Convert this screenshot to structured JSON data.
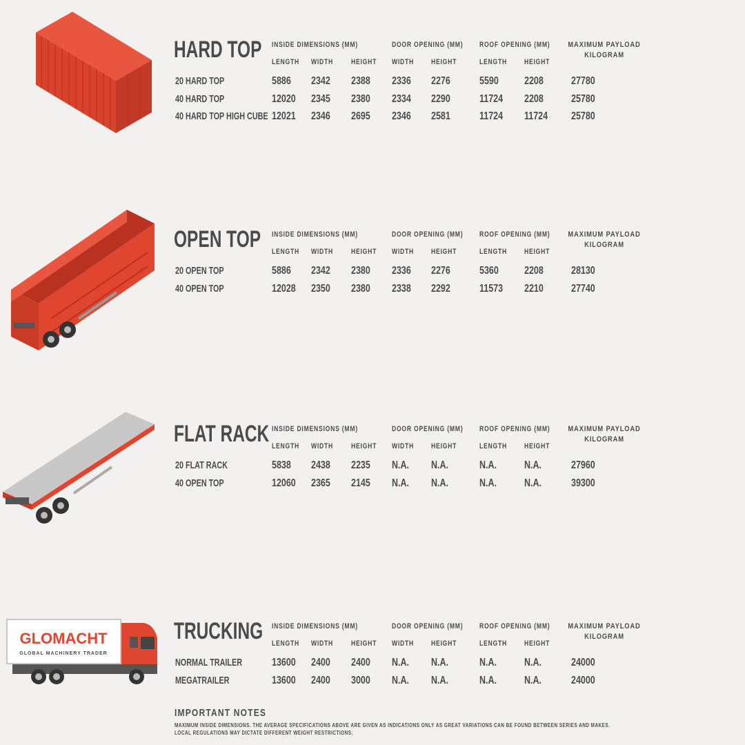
{
  "colors": {
    "text": "#4a4b4d",
    "background": "#f2f1ef",
    "container_red": "#e0452f",
    "flatrack_gray": "#c8c8c8"
  },
  "headers": {
    "inside": "INSIDE DIMENSIONS (MM)",
    "door": "DOOR OPENING (MM)",
    "roof": "ROOF OPENING (MM)",
    "payload_line1": "MAXIMUM PAYLOAD",
    "payload_line2": "KILOGRAM",
    "sub": [
      "LENGTH",
      "WIDTH",
      "HEIGHT",
      "WIDTH",
      "HEIGHT",
      "LENGTH",
      "HEIGHT"
    ]
  },
  "sections": [
    {
      "title": "HARD TOP",
      "illustration": "shipping-container",
      "rows": [
        {
          "name": "20 HARD TOP",
          "values": [
            "5886",
            "2342",
            "2388",
            "2336",
            "2276",
            "5590",
            "2208",
            "27780"
          ]
        },
        {
          "name": "40 HARD TOP",
          "values": [
            "12020",
            "2345",
            "2380",
            "2334",
            "2290",
            "11724",
            "2208",
            "25780"
          ]
        },
        {
          "name": "40 HARD TOP HIGH CUBE",
          "values": [
            "12021",
            "2346",
            "2695",
            "2346",
            "2581",
            "11724",
            "11724",
            "25780"
          ]
        }
      ]
    },
    {
      "title": "OPEN TOP",
      "illustration": "open-top-trailer",
      "rows": [
        {
          "name": "20 OPEN TOP",
          "values": [
            "5886",
            "2342",
            "2380",
            "2336",
            "2276",
            "5360",
            "2208",
            "28130"
          ]
        },
        {
          "name": "40 OPEN TOP",
          "values": [
            "12028",
            "2350",
            "2380",
            "2338",
            "2292",
            "11573",
            "2210",
            "27740"
          ]
        }
      ]
    },
    {
      "title": "FLAT RACK",
      "illustration": "flat-rack-trailer",
      "rows": [
        {
          "name": "20 FLAT RACK",
          "values": [
            "5838",
            "2438",
            "2235",
            "N.A.",
            "N.A.",
            "N.A.",
            "N.A.",
            "27960"
          ]
        },
        {
          "name": "40 OPEN TOP",
          "values": [
            "12060",
            "2365",
            "2145",
            "N.A.",
            "N.A.",
            "N.A.",
            "N.A.",
            "39300"
          ]
        }
      ]
    },
    {
      "title": "TRUCKING",
      "illustration": "truck",
      "rows": [
        {
          "name": "NORMAL TRAILER",
          "values": [
            "13600",
            "2400",
            "2400",
            "N.A.",
            "N.A.",
            "N.A.",
            "N.A.",
            "24000"
          ]
        },
        {
          "name": "MEGATRAILER",
          "values": [
            "13600",
            "2400",
            "3000",
            "N.A.",
            "N.A.",
            "N.A.",
            "N.A.",
            "24000"
          ]
        }
      ]
    }
  ],
  "truck_logo": {
    "brand": "GLOMACHT",
    "tagline": "GLOBAL MACHINERY TRADER"
  },
  "notes": {
    "title": "IMPORTANT NOTES",
    "line1": "MAXIMUM INSIDE DIMENSIONS. THE AVERAGE SPECIFICATIONS ABOVE ARE GIVEN AS INDICATIONS ONLY AS GREAT VARIATIONS CAN BE FOUND BETWEEN SERIES AND MAKES.",
    "line2": "LOCAL REGULATIONS MAY DICTATE DIFFERENT WEIGHT RESTRICTIONS."
  }
}
